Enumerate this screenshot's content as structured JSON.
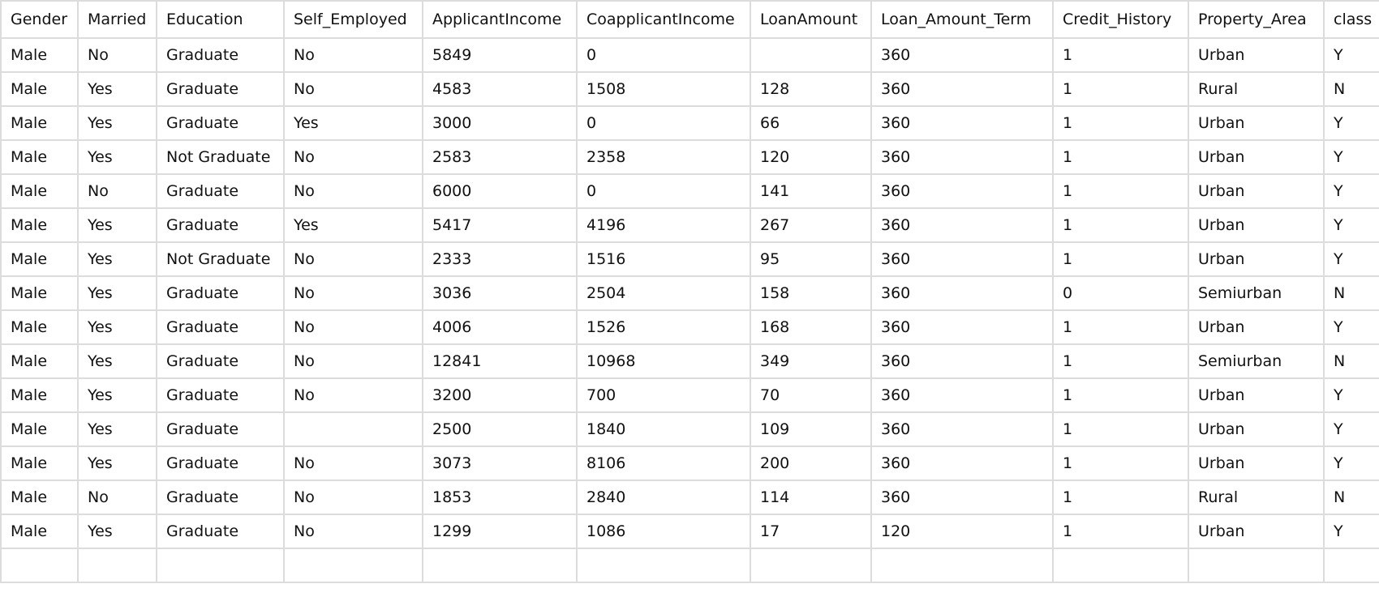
{
  "table": {
    "columns": [
      "Gender",
      "Married",
      "Education",
      "Self_Employed",
      "ApplicantIncome",
      "CoapplicantIncome",
      "LoanAmount",
      "Loan_Amount_Term",
      "Credit_History",
      "Property_Area",
      "class"
    ],
    "rows": [
      [
        "Male",
        "No",
        "Graduate",
        "No",
        "5849",
        "0",
        "",
        "360",
        "1",
        "Urban",
        "Y"
      ],
      [
        "Male",
        "Yes",
        "Graduate",
        "No",
        "4583",
        "1508",
        "128",
        "360",
        "1",
        "Rural",
        "N"
      ],
      [
        "Male",
        "Yes",
        "Graduate",
        "Yes",
        "3000",
        "0",
        "66",
        "360",
        "1",
        "Urban",
        "Y"
      ],
      [
        "Male",
        "Yes",
        "Not Graduate",
        "No",
        "2583",
        "2358",
        "120",
        "360",
        "1",
        "Urban",
        "Y"
      ],
      [
        "Male",
        "No",
        "Graduate",
        "No",
        "6000",
        "0",
        "141",
        "360",
        "1",
        "Urban",
        "Y"
      ],
      [
        "Male",
        "Yes",
        "Graduate",
        "Yes",
        "5417",
        "4196",
        "267",
        "360",
        "1",
        "Urban",
        "Y"
      ],
      [
        "Male",
        "Yes",
        "Not Graduate",
        "No",
        "2333",
        "1516",
        "95",
        "360",
        "1",
        "Urban",
        "Y"
      ],
      [
        "Male",
        "Yes",
        "Graduate",
        "No",
        "3036",
        "2504",
        "158",
        "360",
        "0",
        "Semiurban",
        "N"
      ],
      [
        "Male",
        "Yes",
        "Graduate",
        "No",
        "4006",
        "1526",
        "168",
        "360",
        "1",
        "Urban",
        "Y"
      ],
      [
        "Male",
        "Yes",
        "Graduate",
        "No",
        "12841",
        "10968",
        "349",
        "360",
        "1",
        "Semiurban",
        "N"
      ],
      [
        "Male",
        "Yes",
        "Graduate",
        "No",
        "3200",
        "700",
        "70",
        "360",
        "1",
        "Urban",
        "Y"
      ],
      [
        "Male",
        "Yes",
        "Graduate",
        "",
        "2500",
        "1840",
        "109",
        "360",
        "1",
        "Urban",
        "Y"
      ],
      [
        "Male",
        "Yes",
        "Graduate",
        "No",
        "3073",
        "8106",
        "200",
        "360",
        "1",
        "Urban",
        "Y"
      ],
      [
        "Male",
        "No",
        "Graduate",
        "No",
        "1853",
        "2840",
        "114",
        "360",
        "1",
        "Rural",
        "N"
      ],
      [
        "Male",
        "Yes",
        "Graduate",
        "No",
        "1299",
        "1086",
        "17",
        "120",
        "1",
        "Urban",
        "Y"
      ],
      [
        "",
        "",
        "",
        "",
        "",
        "",
        "",
        "",
        "",
        "",
        ""
      ]
    ]
  }
}
